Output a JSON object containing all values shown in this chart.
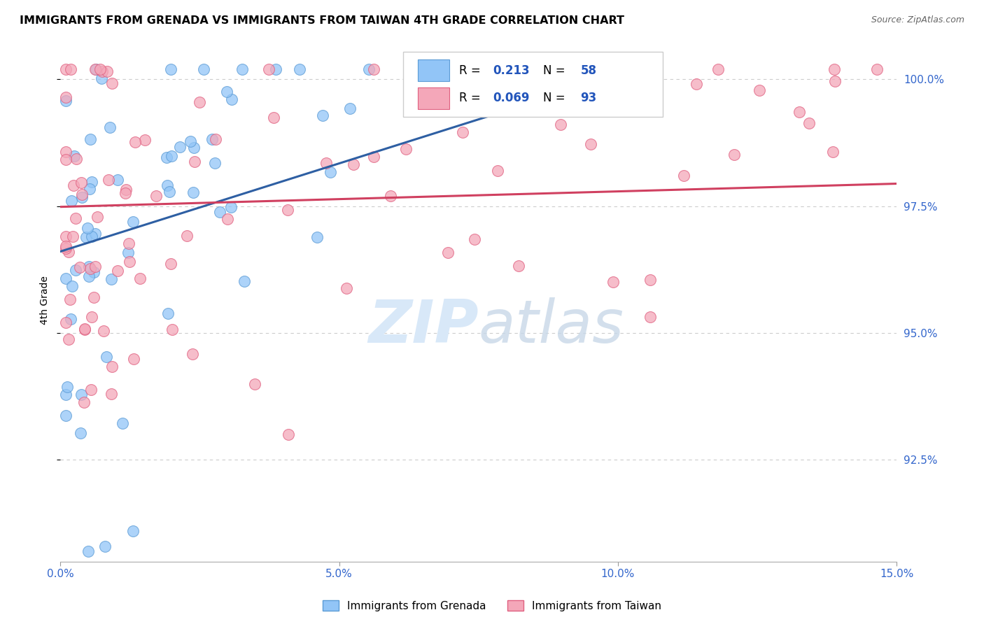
{
  "title": "IMMIGRANTS FROM GRENADA VS IMMIGRANTS FROM TAIWAN 4TH GRADE CORRELATION CHART",
  "source": "Source: ZipAtlas.com",
  "ylabel": "4th Grade",
  "xlim": [
    0.0,
    0.15
  ],
  "ylim": [
    0.905,
    1.008
  ],
  "ytick_vals": [
    0.925,
    0.95,
    0.975,
    1.0
  ],
  "ytick_labels": [
    "92.5%",
    "95.0%",
    "97.5%",
    "100.0%"
  ],
  "xtick_vals": [
    0.0,
    0.05,
    0.1,
    0.15
  ],
  "xtick_labels": [
    "0.0%",
    "5.0%",
    "10.0%",
    "15.0%"
  ],
  "blue_label": "Immigrants from Grenada",
  "pink_label": "Immigrants from Taiwan",
  "blue_R": 0.213,
  "blue_N": 58,
  "pink_R": 0.069,
  "pink_N": 93,
  "blue_color": "#92C5F7",
  "blue_edge": "#5B9BD5",
  "pink_color": "#F4A7B9",
  "pink_edge": "#E06080",
  "blue_line_color": "#2E5FA3",
  "pink_line_color": "#D04060",
  "watermark_color": "#D8E8F8",
  "grid_color": "#CCCCCC",
  "tick_color": "#3366CC",
  "title_fontsize": 11.5,
  "source_fontsize": 9,
  "tick_fontsize": 11,
  "ylabel_fontsize": 10,
  "scatter_size": 130,
  "scatter_alpha": 0.75,
  "line_width": 2.2,
  "legend_R_color": "#2255BB",
  "legend_N_color": "#2255BB"
}
